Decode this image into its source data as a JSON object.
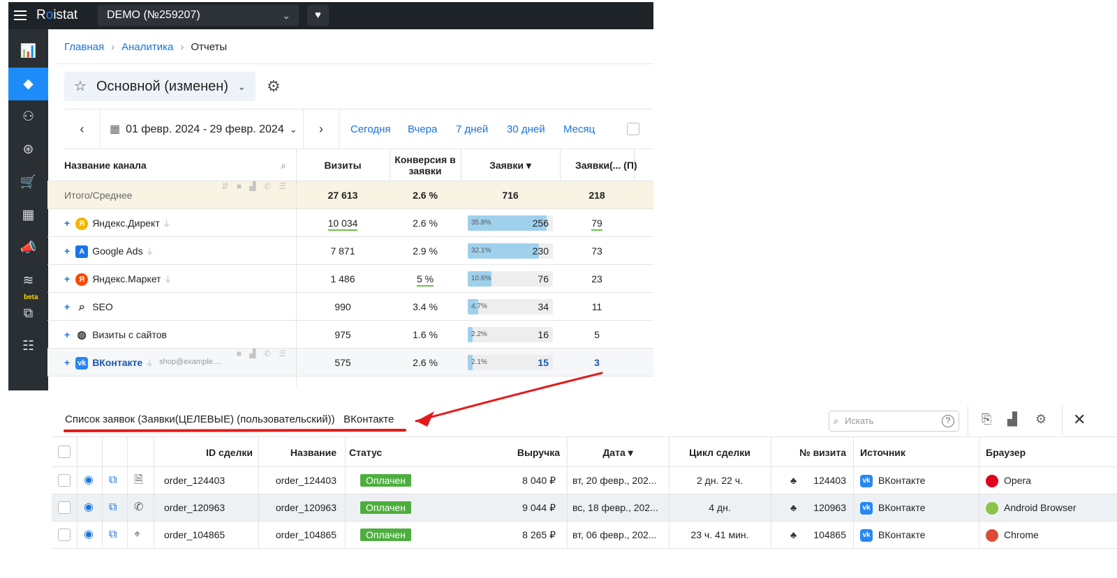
{
  "topbar": {
    "logo_pre": "R",
    "logo_dot": "o",
    "logo_post": "istat",
    "project": "DEMO (№259207)",
    "menu_icon": "hamburger-icon",
    "health_icon": "heart-pulse-icon"
  },
  "sidebar": {
    "items": [
      {
        "icon": "analytics-chart-icon",
        "glyph": "📊"
      },
      {
        "icon": "layers-icon",
        "glyph": "◆",
        "active": true
      },
      {
        "icon": "structure-icon",
        "glyph": "⚇"
      },
      {
        "icon": "money-icon",
        "glyph": "⊛"
      },
      {
        "icon": "cart-icon",
        "glyph": "🛒"
      },
      {
        "icon": "calendar-icon",
        "glyph": "▦"
      },
      {
        "icon": "megaphone-icon",
        "glyph": "📣"
      },
      {
        "icon": "stack-icon",
        "glyph": "≋"
      },
      {
        "icon": "user-export-icon",
        "glyph": "⧉",
        "badge": "beta"
      },
      {
        "icon": "team-icon",
        "glyph": "☷"
      }
    ]
  },
  "breadcrumb": {
    "home": "Главная",
    "analytics": "Аналитика",
    "current": "Отчеты"
  },
  "report": {
    "title": "Основной (изменен)"
  },
  "datebar": {
    "range": "01 февр. 2024 - 29 февр. 2024",
    "quick": [
      "Сегодня",
      "Вчера",
      "7 дней",
      "30 дней",
      "Месяц"
    ]
  },
  "main_table": {
    "headers": {
      "channel": "Название канала",
      "visits": "Визиты",
      "conversion": "Конверсия в заявки",
      "leads": "Заявки ▾",
      "leads_p": "Заявки(... (П)"
    },
    "total": {
      "label": "Итого/Среднее",
      "visits": "27 613",
      "conversion": "2.6 %",
      "leads": "716",
      "leads_p": "218"
    },
    "rows": [
      {
        "name": "Яндекс.Директ",
        "visits": "10 034",
        "conversion": "2.6 %",
        "pct": "35.8%",
        "frac": 0.358,
        "leads": "256",
        "leads_p": "79",
        "icon_color": "#f5b400",
        "plug": true
      },
      {
        "name": "Google Ads",
        "visits": "7 871",
        "conversion": "2.9 %",
        "pct": "32.1%",
        "frac": 0.321,
        "leads": "230",
        "leads_p": "73",
        "icon_color": "#1a73e8",
        "plug": true
      },
      {
        "name": "Яндекс.Маркет",
        "visits": "1 486",
        "conversion": "5 %",
        "pct": "10.6%",
        "frac": 0.106,
        "leads": "76",
        "leads_p": "23",
        "icon_color": "#f54b00",
        "plug": true
      },
      {
        "name": "SEO",
        "visits": "990",
        "conversion": "3.4 %",
        "pct": "4.7%",
        "frac": 0.047,
        "leads": "34",
        "leads_p": "11",
        "icon_color": "#ffffff",
        "plug": false
      },
      {
        "name": "Визиты с сайтов",
        "visits": "975",
        "conversion": "1.6 %",
        "pct": "2.2%",
        "frac": 0.022,
        "leads": "16",
        "leads_p": "5",
        "icon_color": "#ffffff",
        "plug": false
      },
      {
        "name": "ВКонтакте",
        "email": "shop@example....",
        "visits": "575",
        "conversion": "2.6 %",
        "pct": "2.1%",
        "frac": 0.021,
        "leads": "15",
        "leads_p": "3",
        "icon_color": "#2787f5",
        "plug": true
      }
    ]
  },
  "leads_panel": {
    "title": "Список заявок (Заявки(ЦЕЛЕВЫЕ) (пользовательский))",
    "channel": "ВКонтакте",
    "search_placeholder": "Искать",
    "headers": {
      "deal_id": "ID сделки",
      "name": "Название",
      "status": "Статус",
      "revenue": "Выручка",
      "date": "Дата ▾",
      "cycle": "Цикл сделки",
      "visit": "№ визита",
      "source": "Источник",
      "browser": "Браузер"
    },
    "rows": [
      {
        "type_icon": "document-icon",
        "type_glyph": "🗎",
        "deal_id": "order_124403",
        "name": "order_124403",
        "status": "Оплачен",
        "revenue": "8 040 ₽",
        "date": "вт, 20 февр., 202...",
        "cycle": "2 дн. 22 ч.",
        "visit": "124403",
        "source": "ВКонтакте",
        "browser": "Opera",
        "browser_color": "#e0001b"
      },
      {
        "type_icon": "phone-icon",
        "type_glyph": "✆",
        "deal_id": "order_120963",
        "name": "order_120963",
        "status": "Оплачен",
        "revenue": "9 044 ₽",
        "date": "вс, 18 февр., 202...",
        "cycle": "4 дн.",
        "visit": "120963",
        "source": "ВКонтакте",
        "browser": "Android Browser",
        "browser_color": "#8bc34a"
      },
      {
        "type_icon": "crosshair-icon",
        "type_glyph": "⌖",
        "deal_id": "order_104865",
        "name": "order_104865",
        "status": "Оплачен",
        "revenue": "8 265 ₽",
        "date": "вт, 06 февр., 202...",
        "cycle": "23 ч. 41 мин.",
        "visit": "104865",
        "source": "ВКонтакте",
        "browser": "Chrome",
        "browser_color": "#dd4b39"
      }
    ]
  },
  "colors": {
    "accent": "#1d8cf8",
    "topbar": "#1e2327",
    "sidebar": "#2a2f33",
    "status_paid": "#4caf3d",
    "annotation": "#e41a1a"
  }
}
